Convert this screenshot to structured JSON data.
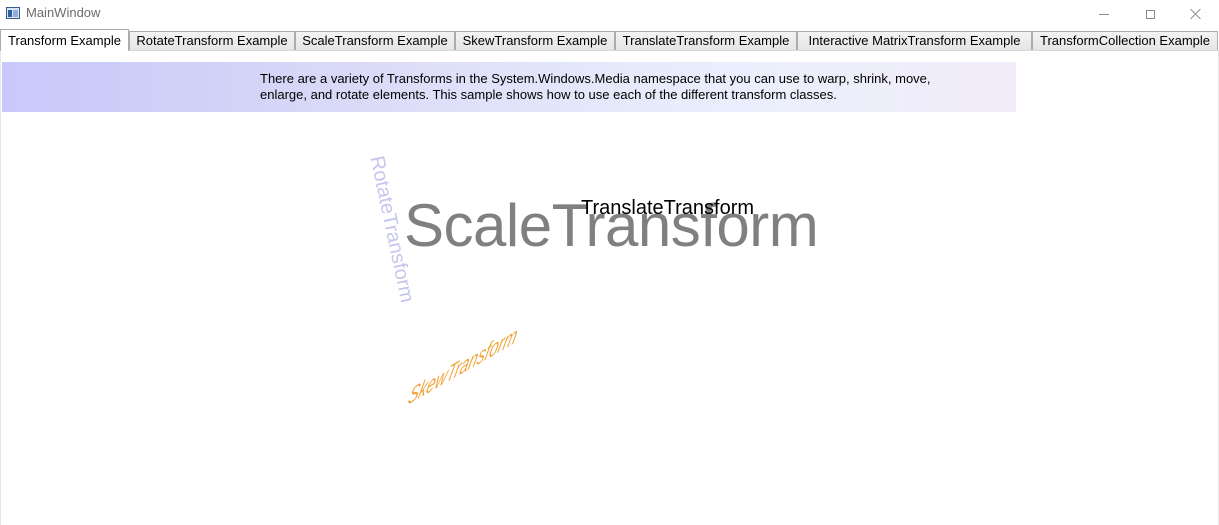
{
  "window": {
    "title": "MainWindow",
    "controls": {
      "minimize": "minimize-icon",
      "maximize": "maximize-icon",
      "close": "close-icon"
    }
  },
  "tabs": [
    {
      "label": "Transform Example",
      "selected": true
    },
    {
      "label": "RotateTransform Example",
      "selected": false
    },
    {
      "label": "ScaleTransform Example",
      "selected": false
    },
    {
      "label": "SkewTransform Example",
      "selected": false
    },
    {
      "label": "TranslateTransform Example",
      "selected": false
    },
    {
      "label": "Interactive MatrixTransform Example",
      "selected": false
    },
    {
      "label": "TransformCollection Example",
      "selected": false
    }
  ],
  "content": {
    "description": "There are a variety of Transforms in the System.Windows.Media namespace that you can use to warp, shrink, move, enlarge, and rotate elements. This sample shows how to use each of the different transform classes.",
    "samples": {
      "rotate": "RotateTransform",
      "scale": "ScaleTransform",
      "translate": "TranslateTransform",
      "skew": "SkewTransform"
    }
  },
  "colors": {
    "banner_start": "#c8c8fa",
    "banner_end": "#f2ecfa",
    "rotate_text": "#c5c5ee",
    "scale_text": "#808080",
    "translate_text": "#000000",
    "skew_text": "#f2a43a"
  }
}
